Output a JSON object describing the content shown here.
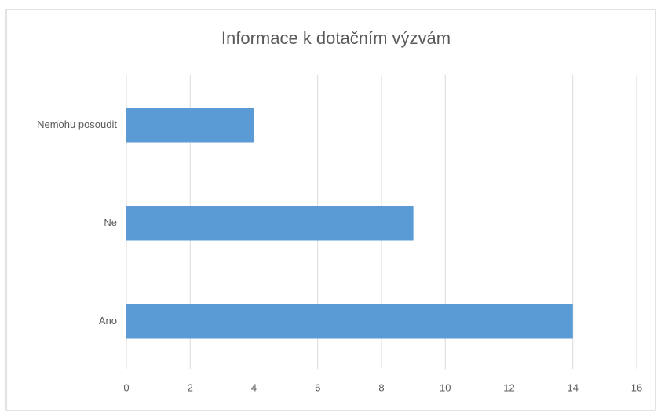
{
  "chart_data": {
    "type": "barh",
    "title": "Informace k dotačním výzvám",
    "categories": [
      "Nemohu posoudit",
      "Ne",
      "Ano"
    ],
    "values": [
      4,
      9,
      14
    ],
    "color": "#5b9bd5",
    "xlim": [
      0,
      16
    ],
    "xticks": [
      0,
      2,
      4,
      6,
      8,
      10,
      12,
      14,
      16
    ],
    "grid": true
  }
}
